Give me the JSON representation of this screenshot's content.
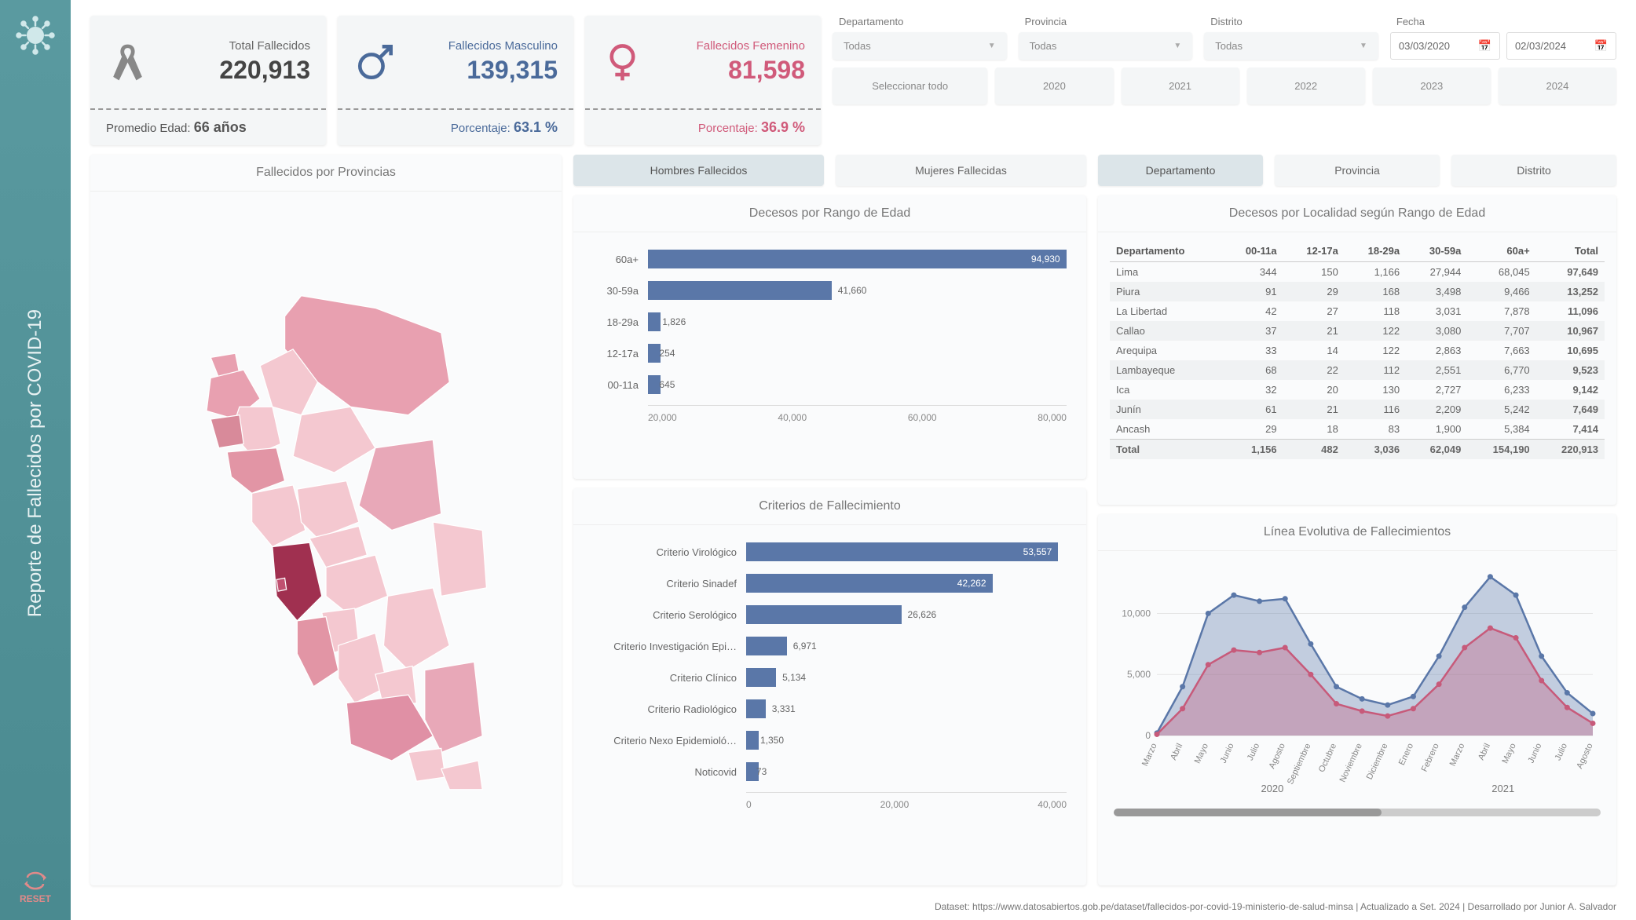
{
  "colors": {
    "total": "#666666",
    "male": "#4a6a9a",
    "female": "#d05a7a",
    "bar_primary": "#5a77a8",
    "bar_light": "#9aaccc",
    "map_light": "#f4c8d0",
    "map_mid": "#e8a0b0",
    "map_dark": "#a03050",
    "line_male": "#5a77a8",
    "line_female": "#c75a7a",
    "area_male": "rgba(90,119,168,0.35)",
    "area_female": "rgba(199,90,122,0.35)"
  },
  "sidebar": {
    "title": "Reporte de Fallecidos por COVID-19",
    "reset": "RESET"
  },
  "kpi": {
    "total": {
      "label": "Total Fallecidos",
      "value": "220,913",
      "sub_label": "Promedio Edad:",
      "sub_value": "66 años"
    },
    "male": {
      "label": "Fallecidos Masculino",
      "value": "139,315",
      "sub_label": "Porcentaje:",
      "sub_value": "63.1 %"
    },
    "female": {
      "label": "Fallecidos Femenino",
      "value": "81,598",
      "sub_label": "Porcentaje:",
      "sub_value": "36.9 %"
    }
  },
  "filters": {
    "departamento": {
      "label": "Departamento",
      "value": "Todas"
    },
    "provincia": {
      "label": "Provincia",
      "value": "Todas"
    },
    "distrito": {
      "label": "Distrito",
      "value": "Todas"
    },
    "fecha": {
      "label": "Fecha",
      "from": "03/03/2020",
      "to": "02/03/2024"
    },
    "years": [
      "Seleccionar todo",
      "2020",
      "2021",
      "2022",
      "2023",
      "2024"
    ]
  },
  "tabs1": {
    "items": [
      "Hombres Fallecidos",
      "Mujeres Fallecidas"
    ],
    "active": 0
  },
  "tabs2": {
    "items": [
      "Departamento",
      "Provincia",
      "Distrito"
    ],
    "active": 0
  },
  "map": {
    "title": "Fallecidos por Provincias"
  },
  "ageChart": {
    "title": "Decesos por Rango de Edad",
    "max": 95000,
    "axis": [
      "20,000",
      "40,000",
      "60,000",
      "80,000"
    ],
    "bars": [
      {
        "label": "60a+",
        "value": 94930,
        "text": "94,930",
        "inside": true
      },
      {
        "label": "30-59a",
        "value": 41660,
        "text": "41,660",
        "inside": false
      },
      {
        "label": "18-29a",
        "value": 1826,
        "text": "1,826",
        "inside": false
      },
      {
        "label": "12-17a",
        "value": 254,
        "text": "254",
        "inside": false
      },
      {
        "label": "00-11a",
        "value": 645,
        "text": "645",
        "inside": false
      }
    ]
  },
  "criteriaChart": {
    "title": "Criterios de Fallecimiento",
    "max": 55000,
    "axis": [
      "0",
      "20,000",
      "40,000"
    ],
    "bars": [
      {
        "label": "Criterio Virológico",
        "value": 53557,
        "text": "53,557",
        "inside": true
      },
      {
        "label": "Criterio Sinadef",
        "value": 42262,
        "text": "42,262",
        "inside": true
      },
      {
        "label": "Criterio Serológico",
        "value": 26626,
        "text": "26,626",
        "inside": false
      },
      {
        "label": "Criterio Investigación Epi…",
        "value": 6971,
        "text": "6,971",
        "inside": false
      },
      {
        "label": "Criterio Clínico",
        "value": 5134,
        "text": "5,134",
        "inside": false
      },
      {
        "label": "Criterio Radiológico",
        "value": 3331,
        "text": "3,331",
        "inside": false
      },
      {
        "label": "Criterio Nexo Epidemioló…",
        "value": 1350,
        "text": "1,350",
        "inside": false
      },
      {
        "label": "Noticovid",
        "value": 73,
        "text": "73",
        "inside": false
      }
    ]
  },
  "locTable": {
    "title": "Decesos por Localidad según Rango de Edad",
    "columns": [
      "Departamento",
      "00-11a",
      "12-17a",
      "18-29a",
      "30-59a",
      "60a+",
      "Total"
    ],
    "rows": [
      [
        "Lima",
        "344",
        "150",
        "1,166",
        "27,944",
        "68,045",
        "97,649"
      ],
      [
        "Piura",
        "91",
        "29",
        "168",
        "3,498",
        "9,466",
        "13,252"
      ],
      [
        "La Libertad",
        "42",
        "27",
        "118",
        "3,031",
        "7,878",
        "11,096"
      ],
      [
        "Callao",
        "37",
        "21",
        "122",
        "3,080",
        "7,707",
        "10,967"
      ],
      [
        "Arequipa",
        "33",
        "14",
        "122",
        "2,863",
        "7,663",
        "10,695"
      ],
      [
        "Lambayeque",
        "68",
        "22",
        "112",
        "2,551",
        "6,770",
        "9,523"
      ],
      [
        "Ica",
        "32",
        "20",
        "130",
        "2,727",
        "6,233",
        "9,142"
      ],
      [
        "Junín",
        "61",
        "21",
        "116",
        "2,209",
        "5,242",
        "7,649"
      ],
      [
        "Ancash",
        "29",
        "18",
        "83",
        "1,900",
        "5,384",
        "7,414"
      ]
    ],
    "total": [
      "Total",
      "1,156",
      "482",
      "3,036",
      "62,049",
      "154,190",
      "220,913"
    ]
  },
  "lineChart": {
    "title": "Línea Evolutiva de Fallecimientos",
    "yticks": [
      0,
      5000,
      10000
    ],
    "ytick_labels": [
      "0",
      "5,000",
      "10,000"
    ],
    "ymax": 13500,
    "months": [
      "Marzo",
      "Abril",
      "Mayo",
      "Junio",
      "Julio",
      "Agosto",
      "Septiembre",
      "Octubre",
      "Noviembre",
      "Diciembre",
      "Enero",
      "Febrero",
      "Marzo",
      "Abril",
      "Mayo",
      "Junio",
      "Julio",
      "Agosto"
    ],
    "year_groups": [
      {
        "label": "2020",
        "span": 10
      },
      {
        "label": "2021",
        "span": 8
      }
    ],
    "male": [
      200,
      4000,
      10000,
      11500,
      11000,
      11200,
      7500,
      4000,
      3000,
      2500,
      3200,
      6500,
      10500,
      13000,
      11500,
      6500,
      3500,
      1800
    ],
    "female": [
      100,
      2200,
      5800,
      7000,
      6800,
      7200,
      5000,
      2600,
      2000,
      1600,
      2200,
      4200,
      7200,
      8800,
      8000,
      4500,
      2300,
      1000
    ]
  },
  "footer": "Dataset: https://www.datosabiertos.gob.pe/dataset/fallecidos-por-covid-19-ministerio-de-salud-minsa | Actualizado a Set. 2024 | Desarrollado por Junior A. Salvador"
}
